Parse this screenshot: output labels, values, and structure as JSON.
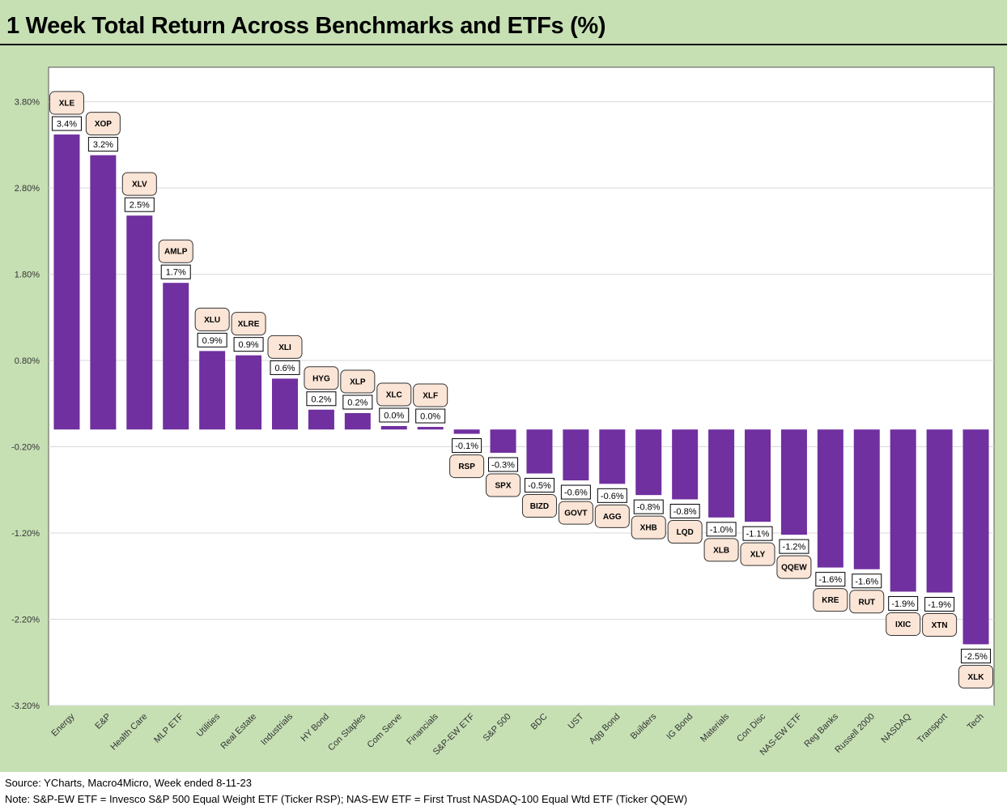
{
  "title": "1 Week Total Return Across Benchmarks and ETFs (%)",
  "footer": {
    "source": "Source: YCharts, Macro4Micro, Week ended 8-11-23",
    "note": "Note: S&P-EW ETF = Invesco S&P 500 Equal Weight ETF (Ticker RSP); NAS-EW ETF = First Trust NASDAQ-100 Equal Wtd ETF (Ticker QQEW)"
  },
  "colors": {
    "bar": "#7030a0",
    "frame": "#c6e0b4",
    "ticker_box": "#fbe5d6"
  },
  "chart_data": {
    "type": "bar",
    "title": "1 Week Total Return Across Benchmarks and ETFs (%)",
    "xlabel": "",
    "ylabel": "",
    "ylim": [
      -3.2,
      4.2
    ],
    "y_ticks": [
      3.8,
      2.8,
      1.8,
      0.8,
      -0.2,
      -1.2,
      -2.2,
      -3.2
    ],
    "y_tick_labels": [
      "3.80%",
      "2.80%",
      "1.80%",
      "0.80%",
      "-0.20%",
      "-1.20%",
      "-2.20%",
      "-3.20%"
    ],
    "grid": true,
    "legend": "none",
    "categories": [
      "Energy",
      "E&P",
      "Health Care",
      "MLP ETF",
      "Utilities",
      "Real Estate",
      "Industrials",
      "HY Bond",
      "Con Staples",
      "Com Serve",
      "Financials",
      "S&P-EW ETF",
      "S&P 500",
      "BDC",
      "UST",
      "Agg Bond",
      "Builders",
      "IG Bond",
      "Materials",
      "Con Disc",
      "NAS-EW ETF",
      "Reg Banks",
      "Russell 2000",
      "NASDAQ",
      "Transport",
      "Tech"
    ],
    "tickers": [
      "XLE",
      "XOP",
      "XLV",
      "AMLP",
      "XLU",
      "XLRE",
      "XLI",
      "HYG",
      "XLP",
      "XLC",
      "XLF",
      "RSP",
      "SPX",
      "BIZD",
      "GOVT",
      "AGG",
      "XHB",
      "LQD",
      "XLB",
      "XLY",
      "QQEW",
      "KRE",
      "RUT",
      "IXIC",
      "XTN",
      "XLK"
    ],
    "values": [
      3.42,
      3.18,
      2.48,
      1.7,
      0.91,
      0.86,
      0.59,
      0.23,
      0.19,
      0.04,
      0.03,
      -0.05,
      -0.27,
      -0.51,
      -0.59,
      -0.63,
      -0.76,
      -0.81,
      -1.02,
      -1.07,
      -1.22,
      -1.6,
      -1.62,
      -1.88,
      -1.89,
      -2.49
    ],
    "data_labels": [
      "3.4%",
      "3.2%",
      "2.5%",
      "1.7%",
      "0.9%",
      "0.9%",
      "0.6%",
      "0.2%",
      "0.2%",
      "0.0%",
      "0.0%",
      "-0.1%",
      "-0.3%",
      "-0.5%",
      "-0.6%",
      "-0.6%",
      "-0.8%",
      "-0.8%",
      "-1.0%",
      "-1.1%",
      "-1.2%",
      "-1.6%",
      "-1.6%",
      "-1.9%",
      "-1.9%",
      "-2.5%"
    ]
  }
}
